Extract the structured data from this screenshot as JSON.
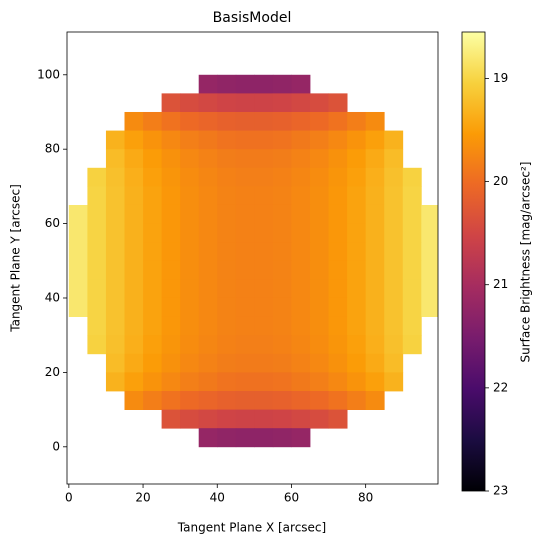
{
  "chart_data": {
    "type": "heatmap",
    "title": "BasisModel",
    "x_label": "Tangent Plane X [arcsec]",
    "y_label": "Tangent Plane Y [arcsec]",
    "xlim": [
      -0.5,
      99.5
    ],
    "ylim": [
      -10,
      111.5
    ],
    "xticks": [
      0,
      20,
      40,
      60,
      80
    ],
    "yticks": [
      0,
      20,
      40,
      60,
      80,
      100
    ],
    "colormap": "inferno",
    "x": [
      2.5,
      7.5,
      12.5,
      17.5,
      22.5,
      27.5,
      32.5,
      37.5,
      42.5,
      47.5,
      52.5,
      57.5,
      62.5,
      67.5,
      72.5,
      77.5,
      82.5,
      87.5,
      92.5,
      97.5
    ],
    "y": [
      97.5,
      92.5,
      87.5,
      82.5,
      77.5,
      72.5,
      67.5,
      62.5,
      57.5,
      52.5,
      47.5,
      42.5,
      37.5,
      32.5,
      27.5,
      22.5,
      17.5,
      12.5,
      7.5,
      2.5
    ],
    "z": [
      [
        null,
        null,
        null,
        null,
        null,
        null,
        null,
        21.2,
        21.25,
        21.27,
        21.27,
        21.25,
        21.2,
        null,
        null,
        null,
        null,
        null,
        null,
        null
      ],
      [
        null,
        null,
        null,
        null,
        null,
        20.33,
        20.42,
        20.48,
        20.53,
        20.55,
        20.55,
        20.53,
        20.48,
        20.42,
        20.33,
        null,
        null,
        null,
        null,
        null
      ],
      [
        null,
        null,
        null,
        19.7,
        19.83,
        19.94,
        20.03,
        20.09,
        20.14,
        20.16,
        20.16,
        20.14,
        20.09,
        20.03,
        19.94,
        19.83,
        19.7,
        null,
        null,
        null
      ],
      [
        null,
        null,
        19.33,
        19.49,
        19.62,
        19.73,
        19.82,
        19.88,
        19.93,
        19.95,
        19.95,
        19.93,
        19.88,
        19.82,
        19.73,
        19.62,
        19.49,
        19.33,
        null,
        null
      ],
      [
        null,
        null,
        19.24,
        19.4,
        19.53,
        19.64,
        19.73,
        19.79,
        19.84,
        19.86,
        19.86,
        19.84,
        19.79,
        19.73,
        19.64,
        19.53,
        19.4,
        19.24,
        null,
        null
      ],
      [
        null,
        19.03,
        19.2,
        19.36,
        19.49,
        19.6,
        19.69,
        19.75,
        19.8,
        19.82,
        19.82,
        19.8,
        19.75,
        19.69,
        19.6,
        19.49,
        19.36,
        19.2,
        19.03,
        null
      ],
      [
        null,
        19.01,
        19.18,
        19.34,
        19.47,
        19.58,
        19.67,
        19.73,
        19.78,
        19.8,
        19.8,
        19.78,
        19.73,
        19.67,
        19.58,
        19.47,
        19.34,
        19.18,
        19.01,
        null
      ],
      [
        18.81,
        19.01,
        19.18,
        19.34,
        19.47,
        19.58,
        19.67,
        19.73,
        19.78,
        19.8,
        19.8,
        19.78,
        19.73,
        19.67,
        19.58,
        19.47,
        19.34,
        19.18,
        19.01,
        18.81
      ],
      [
        18.81,
        19.01,
        19.18,
        19.34,
        19.47,
        19.58,
        19.67,
        19.73,
        19.78,
        19.8,
        19.8,
        19.78,
        19.73,
        19.67,
        19.58,
        19.47,
        19.34,
        19.18,
        19.01,
        18.81
      ],
      [
        18.81,
        19.01,
        19.18,
        19.34,
        19.47,
        19.58,
        19.67,
        19.73,
        19.78,
        19.8,
        19.8,
        19.78,
        19.73,
        19.67,
        19.58,
        19.47,
        19.34,
        19.18,
        19.01,
        18.81
      ],
      [
        18.81,
        19.01,
        19.18,
        19.34,
        19.47,
        19.58,
        19.67,
        19.73,
        19.78,
        19.8,
        19.8,
        19.78,
        19.73,
        19.67,
        19.58,
        19.47,
        19.34,
        19.18,
        19.01,
        18.81
      ],
      [
        18.81,
        19.01,
        19.18,
        19.34,
        19.47,
        19.58,
        19.67,
        19.73,
        19.78,
        19.8,
        19.8,
        19.78,
        19.73,
        19.67,
        19.58,
        19.47,
        19.34,
        19.18,
        19.01,
        18.81
      ],
      [
        18.81,
        19.01,
        19.18,
        19.34,
        19.47,
        19.58,
        19.67,
        19.73,
        19.78,
        19.8,
        19.8,
        19.78,
        19.73,
        19.67,
        19.58,
        19.47,
        19.34,
        19.18,
        19.01,
        18.81
      ],
      [
        null,
        19.01,
        19.18,
        19.34,
        19.47,
        19.58,
        19.67,
        19.73,
        19.78,
        19.8,
        19.8,
        19.78,
        19.73,
        19.67,
        19.58,
        19.47,
        19.34,
        19.18,
        19.01,
        null
      ],
      [
        null,
        19.03,
        19.2,
        19.36,
        19.49,
        19.6,
        19.69,
        19.75,
        19.8,
        19.82,
        19.82,
        19.8,
        19.75,
        19.69,
        19.6,
        19.49,
        19.36,
        19.2,
        19.03,
        null
      ],
      [
        null,
        null,
        19.24,
        19.4,
        19.53,
        19.64,
        19.73,
        19.79,
        19.84,
        19.86,
        19.86,
        19.84,
        19.79,
        19.73,
        19.64,
        19.53,
        19.4,
        19.24,
        null,
        null
      ],
      [
        null,
        null,
        19.33,
        19.49,
        19.62,
        19.73,
        19.82,
        19.88,
        19.93,
        19.95,
        19.95,
        19.93,
        19.88,
        19.82,
        19.73,
        19.62,
        19.49,
        19.33,
        null,
        null
      ],
      [
        null,
        null,
        null,
        19.7,
        19.83,
        19.94,
        20.03,
        20.09,
        20.14,
        20.16,
        20.16,
        20.14,
        20.09,
        20.03,
        19.94,
        19.83,
        19.7,
        null,
        null,
        null
      ],
      [
        null,
        null,
        null,
        null,
        null,
        20.33,
        20.42,
        20.48,
        20.53,
        20.55,
        20.55,
        20.53,
        20.48,
        20.42,
        20.33,
        null,
        null,
        null,
        null,
        null
      ],
      [
        null,
        null,
        null,
        null,
        null,
        null,
        null,
        21.2,
        21.25,
        21.27,
        21.27,
        21.25,
        21.2,
        null,
        null,
        null,
        null,
        null,
        null,
        null
      ]
    ],
    "colorbar": {
      "label": "Surface Brightness [mag/arcsec²]",
      "lim": [
        23,
        18.55
      ],
      "ticks": [
        19,
        20,
        21,
        22,
        23
      ]
    }
  }
}
